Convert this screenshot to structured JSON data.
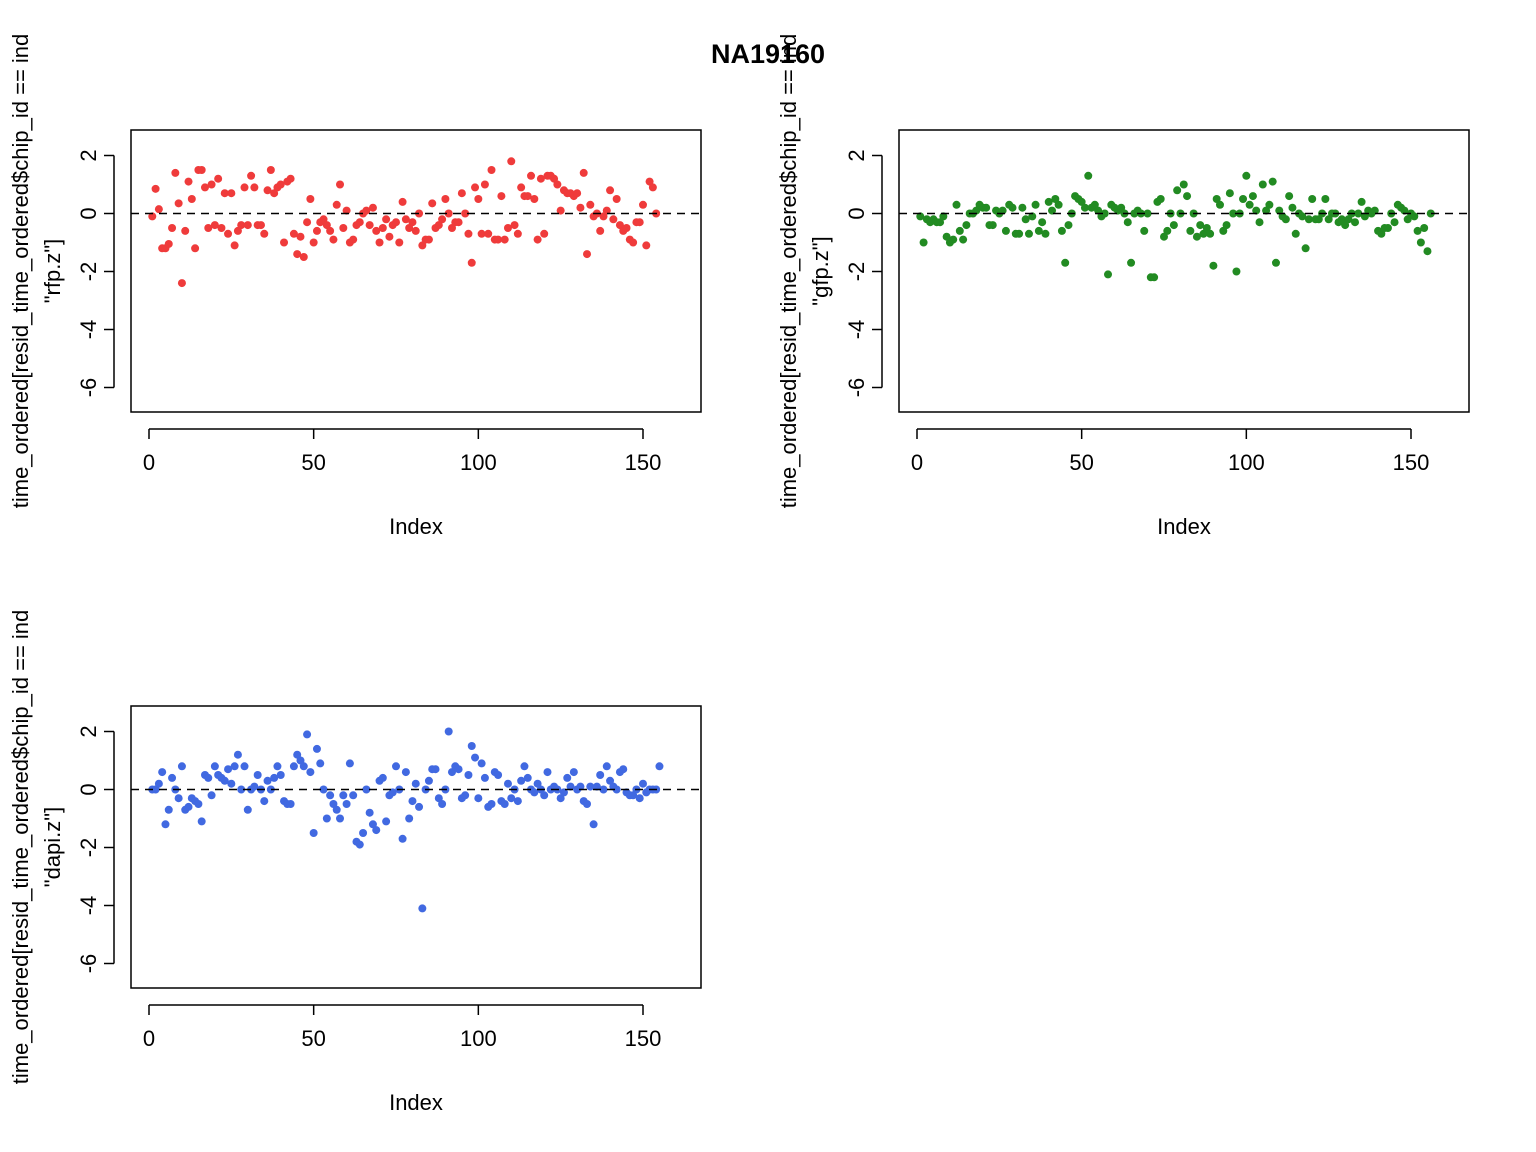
{
  "title": "NA19160",
  "colors": {
    "rfp": "#ef3b3b",
    "gfp": "#228b22",
    "dapi": "#4169e1",
    "axis": "#000000"
  },
  "chart_data": [
    {
      "type": "scatter",
      "series_key": "rfp",
      "xlabel": "Index",
      "ylabel_outer": "time_ordered[resid_time_ordered$chip_id == ind",
      "ylabel_inner": "\"rfp.z\"]",
      "xlim": [
        0,
        162
      ],
      "ylim": [
        -7,
        2.8
      ],
      "xticks": [
        0,
        50,
        100,
        150
      ],
      "yticks": [
        -6,
        -4,
        -2,
        0,
        2
      ],
      "hline": 0,
      "y": [
        -0.1,
        0.85,
        0.15,
        -1.2,
        -1.2,
        -1.05,
        -0.5,
        1.4,
        0.35,
        -2.4,
        -0.6,
        1.1,
        0.5,
        -1.2,
        1.5,
        1.5,
        0.9,
        -0.5,
        1.0,
        -0.4,
        1.2,
        -0.5,
        0.7,
        -0.7,
        0.7,
        -1.1,
        -0.6,
        -0.4,
        0.9,
        -0.4,
        1.3,
        0.9,
        -0.4,
        -0.4,
        -0.7,
        0.8,
        1.5,
        0.7,
        0.9,
        1.0,
        -1.0,
        1.1,
        1.2,
        -0.7,
        -1.4,
        -0.8,
        -1.5,
        -0.3,
        0.5,
        -1.0,
        -0.6,
        -0.3,
        -0.2,
        -0.4,
        -0.6,
        -0.9,
        0.3,
        1.0,
        -0.5,
        0.1,
        -1.0,
        -0.9,
        -0.4,
        -0.3,
        0.0,
        0.1,
        -0.4,
        0.2,
        -0.6,
        -1.0,
        -0.5,
        -0.2,
        -0.8,
        -0.4,
        -0.3,
        -1.0,
        0.4,
        -0.2,
        -0.5,
        -0.3,
        -0.6,
        0.0,
        -1.1,
        -0.9,
        -0.9,
        0.35,
        -0.5,
        -0.4,
        -0.2,
        0.5,
        0.0,
        -0.5,
        -0.3,
        -0.3,
        0.7,
        0.0,
        -0.7,
        -1.7,
        0.9,
        0.5,
        -0.7,
        1.0,
        -0.7,
        1.5,
        -0.9,
        -0.9,
        0.6,
        -0.9,
        -0.5,
        1.8,
        -0.4,
        -0.7,
        0.9,
        0.6,
        0.6,
        1.3,
        0.5,
        -0.9,
        1.2,
        -0.7,
        1.3,
        1.3,
        1.2,
        1.0,
        0.1,
        0.8,
        0.7,
        0.7,
        0.6,
        0.7,
        0.2,
        1.4,
        -1.4,
        0.3,
        -0.1,
        0.0,
        -0.6,
        -0.1,
        0.1,
        0.8,
        -0.2,
        0.5,
        -0.4,
        -0.6,
        -0.5,
        -0.9,
        -1.0,
        -0.3,
        -0.3,
        0.3,
        -1.1,
        1.1,
        0.9,
        0.0
      ]
    },
    {
      "type": "scatter",
      "series_key": "gfp",
      "xlabel": "Index",
      "ylabel_outer": "time_ordered[resid_time_ordered$chip_id == ind",
      "ylabel_inner": "\"gfp.z\"]",
      "xlim": [
        0,
        162
      ],
      "ylim": [
        -7,
        2.8
      ],
      "xticks": [
        0,
        50,
        100,
        150
      ],
      "yticks": [
        -6,
        -4,
        -2,
        0,
        2
      ],
      "hline": 0,
      "y": [
        -0.1,
        -1.0,
        -0.2,
        -0.3,
        -0.2,
        -0.3,
        -0.3,
        -0.1,
        -0.8,
        -1.0,
        -0.9,
        0.3,
        -0.6,
        -0.9,
        -0.4,
        0.0,
        0.0,
        0.1,
        0.3,
        0.2,
        0.2,
        -0.4,
        -0.4,
        0.1,
        0.0,
        0.1,
        -0.6,
        0.3,
        0.2,
        -0.7,
        -0.7,
        0.2,
        -0.2,
        -0.7,
        -0.1,
        0.3,
        -0.6,
        -0.3,
        -0.7,
        0.4,
        0.1,
        0.5,
        0.3,
        -0.6,
        -1.7,
        -0.4,
        0.0,
        0.6,
        0.5,
        0.4,
        0.2,
        1.3,
        0.2,
        0.3,
        0.1,
        -0.1,
        0.0,
        -2.1,
        0.3,
        0.2,
        0.1,
        0.2,
        0.0,
        -0.3,
        -1.7,
        0.0,
        0.1,
        0.0,
        -0.6,
        0.0,
        -2.2,
        -2.2,
        0.4,
        0.5,
        -0.8,
        -0.6,
        0.0,
        -0.4,
        0.8,
        0.0,
        1.0,
        0.6,
        -0.6,
        0.0,
        -0.8,
        -0.4,
        -0.7,
        -0.5,
        -0.7,
        -1.8,
        0.5,
        0.3,
        -0.6,
        -0.4,
        0.7,
        0.0,
        -2.0,
        0.0,
        0.5,
        1.3,
        0.3,
        0.6,
        0.1,
        -0.3,
        1.0,
        0.1,
        0.3,
        1.1,
        -1.7,
        0.1,
        -0.1,
        -0.2,
        0.6,
        0.2,
        -0.7,
        0.0,
        -0.1,
        -1.2,
        -0.2,
        0.5,
        -0.2,
        -0.2,
        0.0,
        0.5,
        -0.2,
        0.0,
        0.0,
        -0.3,
        -0.2,
        -0.4,
        -0.2,
        0.0,
        -0.3,
        0.0,
        0.4,
        -0.1,
        0.1,
        0.0,
        0.1,
        -0.6,
        -0.7,
        -0.5,
        -0.5,
        0.0,
        -0.3,
        0.3,
        0.2,
        0.1,
        -0.2,
        0.0,
        -0.1,
        -0.6,
        -1.0,
        -0.5,
        -1.3,
        0.0
      ]
    },
    {
      "type": "scatter",
      "series_key": "dapi",
      "xlabel": "Index",
      "ylabel_outer": "time_ordered[resid_time_ordered$chip_id == ind",
      "ylabel_inner": "\"dapi.z\"]",
      "xlim": [
        0,
        162
      ],
      "ylim": [
        -7,
        2.8
      ],
      "xticks": [
        0,
        50,
        100,
        150
      ],
      "yticks": [
        -6,
        -4,
        -2,
        0,
        2
      ],
      "hline": 0,
      "y": [
        0.0,
        0.0,
        0.2,
        0.6,
        -1.2,
        -0.7,
        0.4,
        0.0,
        -0.3,
        0.8,
        -0.7,
        -0.6,
        -0.3,
        -0.4,
        -0.5,
        -1.1,
        0.5,
        0.4,
        -0.2,
        0.8,
        0.5,
        0.4,
        0.3,
        0.7,
        0.2,
        0.8,
        1.2,
        0.0,
        0.8,
        -0.7,
        0.0,
        0.1,
        0.5,
        0.0,
        -0.4,
        0.3,
        0.0,
        0.4,
        0.8,
        0.5,
        -0.4,
        -0.5,
        -0.5,
        0.8,
        1.2,
        1.0,
        0.8,
        1.9,
        0.6,
        -1.5,
        1.4,
        0.9,
        0.0,
        -1.0,
        -0.2,
        -0.5,
        -0.7,
        -1.0,
        -0.2,
        -0.5,
        0.9,
        -0.2,
        -1.8,
        -1.9,
        -1.5,
        0.0,
        -0.8,
        -1.2,
        -1.4,
        0.3,
        0.4,
        -1.1,
        -0.2,
        -0.1,
        0.8,
        0.0,
        -1.7,
        0.6,
        -1.0,
        -0.4,
        0.2,
        -0.6,
        -4.1,
        0.0,
        0.3,
        0.7,
        0.7,
        -0.3,
        -0.5,
        0.0,
        2.0,
        0.6,
        0.8,
        0.7,
        -0.3,
        -0.2,
        0.5,
        1.5,
        1.1,
        -0.3,
        0.9,
        0.4,
        -0.6,
        -0.5,
        0.6,
        0.5,
        -0.4,
        -0.5,
        0.2,
        -0.3,
        0.0,
        -0.4,
        0.3,
        0.8,
        0.4,
        0.0,
        -0.1,
        0.2,
        0.0,
        -0.2,
        0.6,
        0.0,
        0.1,
        0.0,
        -0.3,
        -0.1,
        0.4,
        0.1,
        0.6,
        0.0,
        0.1,
        -0.4,
        -0.5,
        0.1,
        -1.2,
        0.1,
        0.5,
        0.0,
        0.8,
        0.3,
        0.1,
        0.0,
        0.6,
        0.7,
        -0.1,
        -0.2,
        -0.2,
        0.0,
        -0.3,
        0.2,
        -0.1,
        0.0,
        0.0,
        0.0,
        0.8
      ]
    }
  ]
}
